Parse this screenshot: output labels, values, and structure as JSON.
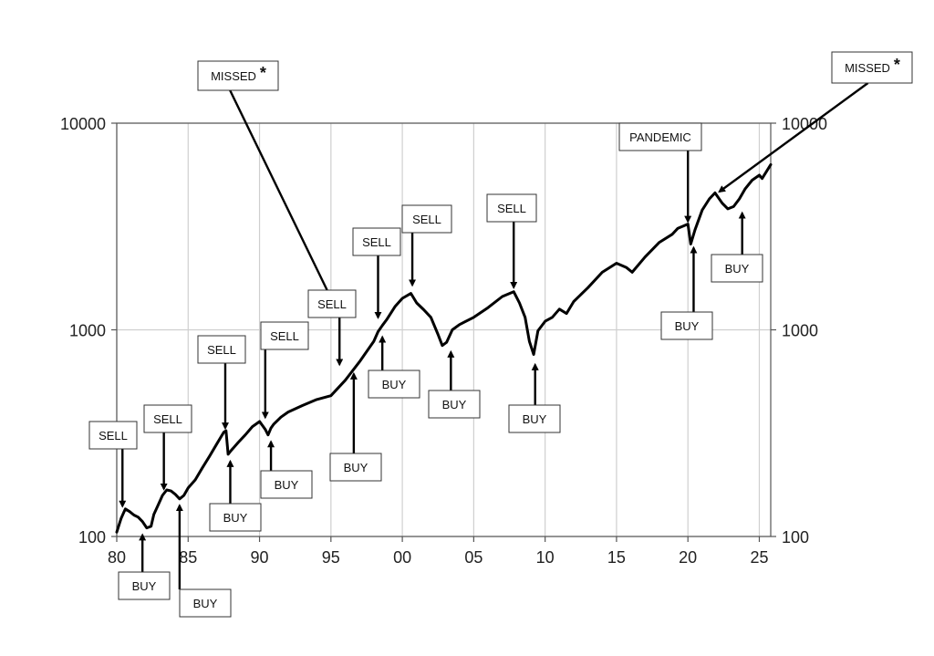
{
  "chart_data": {
    "type": "line",
    "title": "",
    "xlabel": "",
    "ylabel": "",
    "yscale": "log",
    "xlim": [
      1980,
      2025.8
    ],
    "ylim": [
      100,
      10000
    ],
    "grid": true,
    "x_ticks": [
      {
        "value": 1980,
        "label": "80"
      },
      {
        "value": 1985,
        "label": "85"
      },
      {
        "value": 1990,
        "label": "90"
      },
      {
        "value": 1995,
        "label": "95"
      },
      {
        "value": 2000,
        "label": "00"
      },
      {
        "value": 2005,
        "label": "05"
      },
      {
        "value": 2010,
        "label": "10"
      },
      {
        "value": 2015,
        "label": "15"
      },
      {
        "value": 2020,
        "label": "20"
      },
      {
        "value": 2025,
        "label": "25"
      }
    ],
    "y_ticks": [
      {
        "value": 100,
        "label": "100"
      },
      {
        "value": 1000,
        "label": "1000"
      },
      {
        "value": 10000,
        "label": "10000"
      }
    ],
    "line_color": "#000000",
    "series": [
      {
        "x": [
          1980.0,
          1980.3,
          1980.6,
          1980.9,
          1981.2,
          1981.5,
          1981.8,
          1982.1,
          1982.4,
          1982.6,
          1982.9,
          1983.2,
          1983.5,
          1983.8,
          1984.1,
          1984.4,
          1984.7,
          1985.0,
          1985.5,
          1986.0,
          1986.5,
          1987.0,
          1987.5,
          1987.65,
          1987.8,
          1988.0,
          1988.5,
          1989.0,
          1989.5,
          1990.0,
          1990.4,
          1990.6,
          1990.8,
          1991.0,
          1991.5,
          1992.0,
          1993.0,
          1994.0,
          1995.0,
          1996.0,
          1997.0,
          1998.0,
          1998.3,
          1998.6,
          1998.9,
          1999.5,
          2000.0,
          2000.6,
          2001.0,
          2001.5,
          2002.0,
          2002.5,
          2002.8,
          2003.1,
          2003.5,
          2004.0,
          2005.0,
          2006.0,
          2007.0,
          2007.8,
          2008.2,
          2008.6,
          2008.9,
          2009.2,
          2009.5,
          2010.0,
          2010.5,
          2011.0,
          2011.5,
          2012.0,
          2013.0,
          2014.0,
          2015.0,
          2015.7,
          2016.1,
          2017.0,
          2018.0,
          2018.9,
          2019.3,
          2020.0,
          2020.2,
          2020.5,
          2021.0,
          2021.5,
          2021.9,
          2022.4,
          2022.8,
          2023.2,
          2023.6,
          2024.0,
          2024.5,
          2025.0,
          2025.2,
          2025.8
        ],
        "y": [
          105,
          122,
          136,
          132,
          127,
          124,
          118,
          110,
          112,
          128,
          142,
          158,
          168,
          166,
          160,
          152,
          158,
          172,
          188,
          215,
          245,
          280,
          320,
          325,
          250,
          260,
          285,
          310,
          340,
          360,
          330,
          310,
          335,
          350,
          378,
          400,
          430,
          460,
          480,
          570,
          700,
          880,
          980,
          1050,
          1120,
          1300,
          1420,
          1500,
          1350,
          1250,
          1150,
          950,
          840,
          870,
          1000,
          1060,
          1150,
          1280,
          1450,
          1530,
          1350,
          1150,
          880,
          760,
          990,
          1100,
          1150,
          1260,
          1200,
          1370,
          1600,
          1900,
          2100,
          2000,
          1900,
          2250,
          2650,
          2900,
          3100,
          3250,
          2600,
          3050,
          3800,
          4300,
          4600,
          4100,
          3850,
          3950,
          4300,
          4800,
          5300,
          5600,
          5400,
          6300
        ]
      }
    ],
    "annotations": [
      {
        "text": "SELL",
        "x": 1980.4,
        "y": 132,
        "direction": "down"
      },
      {
        "text": "BUY",
        "x": 1981.8,
        "y": 108,
        "direction": "up"
      },
      {
        "text": "SELL",
        "x": 1983.3,
        "y": 160,
        "direction": "down"
      },
      {
        "text": "BUY",
        "x": 1984.4,
        "y": 150,
        "direction": "down"
      },
      {
        "text": "SELL",
        "x": 1987.6,
        "y": 315,
        "direction": "down"
      },
      {
        "text": "BUY",
        "x": 1987.95,
        "y": 245,
        "direction": "up"
      },
      {
        "text": "SELL",
        "x": 1990.4,
        "y": 355,
        "direction": "down"
      },
      {
        "text": "BUY",
        "x": 1990.8,
        "y": 305,
        "direction": "up"
      },
      {
        "text": "MISSED",
        "star": "*",
        "x": 1995.4,
        "y": 1250,
        "direction": "down"
      },
      {
        "text": "SELL",
        "x": 1995.6,
        "y": 640,
        "direction": "down"
      },
      {
        "text": "BUY",
        "x": 1996.6,
        "y": 650,
        "direction": "up"
      },
      {
        "text": "SELL",
        "x": 1998.3,
        "y": 1080,
        "direction": "down"
      },
      {
        "text": "BUY",
        "x": 1998.6,
        "y": 980,
        "direction": "up"
      },
      {
        "text": "SELL",
        "x": 2000.7,
        "y": 1550,
        "direction": "down"
      },
      {
        "text": "BUY",
        "x": 2003.4,
        "y": 830,
        "direction": "up"
      },
      {
        "text": "SELL",
        "x": 2007.8,
        "y": 1510,
        "direction": "down"
      },
      {
        "text": "BUY",
        "x": 2009.3,
        "y": 720,
        "direction": "up"
      },
      {
        "text": "PANDEMIC",
        "x": 2020.0,
        "y": 3150,
        "direction": "down"
      },
      {
        "text": "BUY",
        "x": 2020.4,
        "y": 2650,
        "direction": "up"
      },
      {
        "text": "MISSED",
        "star": "*",
        "x": 2021.9,
        "y": 4500,
        "direction": "down"
      },
      {
        "text": "BUY",
        "x": 2023.8,
        "y": 3900,
        "direction": "up"
      }
    ]
  }
}
